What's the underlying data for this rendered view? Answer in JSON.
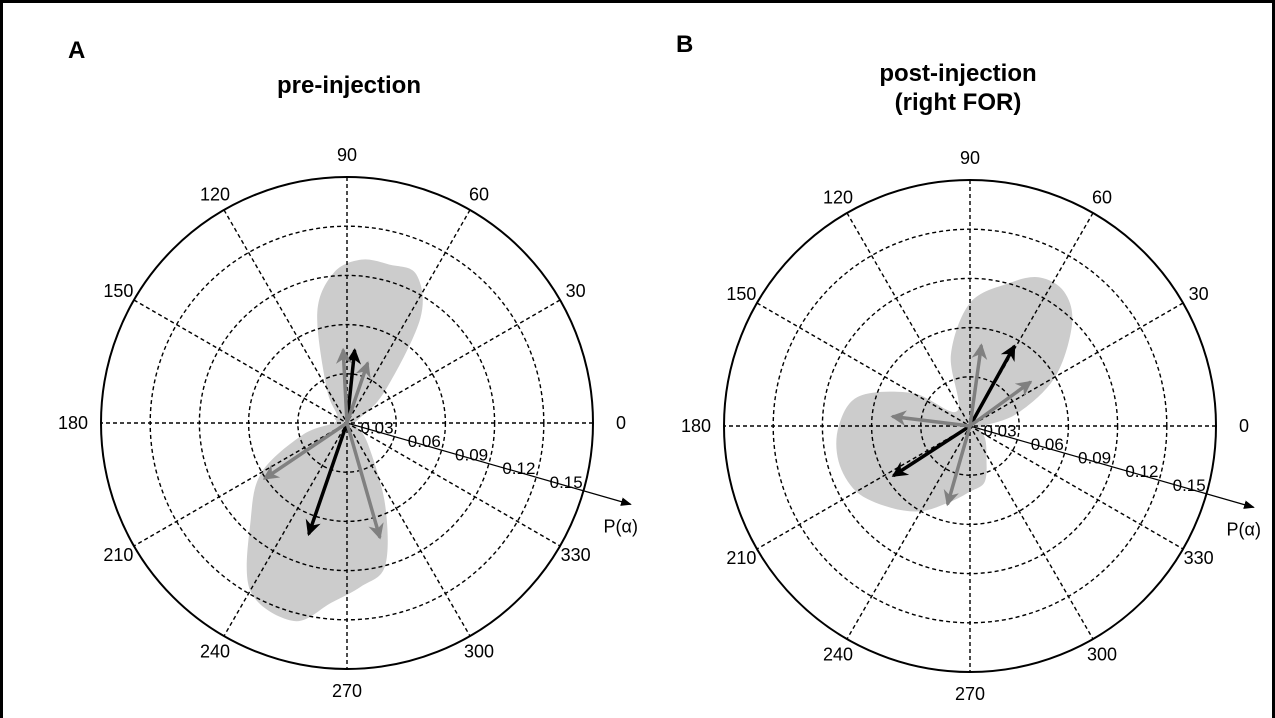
{
  "chart_data": [
    {
      "type": "polar",
      "panel_label": "A",
      "title": "pre-injection",
      "title_lines": [
        "pre-injection"
      ],
      "angle_ticks": [
        "0",
        "30",
        "60",
        "90",
        "120",
        "150",
        "180",
        "210",
        "240",
        "270",
        "300",
        "330"
      ],
      "angle_tick_values": [
        0,
        30,
        60,
        90,
        120,
        150,
        180,
        210,
        240,
        270,
        300,
        330
      ],
      "radial_ticks": [
        "0.03",
        "0.06",
        "0.09",
        "0.12",
        "0.15"
      ],
      "radial_tick_values": [
        0.03,
        0.06,
        0.09,
        0.12,
        0.15
      ],
      "rlim": [
        0,
        0.15
      ],
      "radial_axis_label": "P(α)",
      "radial_axis_angle_deg": -16,
      "grid": true,
      "distribution_colour": "#cccccc",
      "distribution": [
        {
          "angle": 0,
          "r": 0.004
        },
        {
          "angle": 20,
          "r": 0.008
        },
        {
          "angle": 40,
          "r": 0.03
        },
        {
          "angle": 55,
          "r": 0.078
        },
        {
          "angle": 65,
          "r": 0.1
        },
        {
          "angle": 75,
          "r": 0.1
        },
        {
          "angle": 85,
          "r": 0.1
        },
        {
          "angle": 95,
          "r": 0.092
        },
        {
          "angle": 105,
          "r": 0.07
        },
        {
          "angle": 120,
          "r": 0.025
        },
        {
          "angle": 140,
          "r": 0.008
        },
        {
          "angle": 160,
          "r": 0.008
        },
        {
          "angle": 180,
          "r": 0.008
        },
        {
          "angle": 195,
          "r": 0.028
        },
        {
          "angle": 210,
          "r": 0.06
        },
        {
          "angle": 225,
          "r": 0.083
        },
        {
          "angle": 240,
          "r": 0.118
        },
        {
          "angle": 255,
          "r": 0.125
        },
        {
          "angle": 265,
          "r": 0.11
        },
        {
          "angle": 275,
          "r": 0.1
        },
        {
          "angle": 285,
          "r": 0.09
        },
        {
          "angle": 295,
          "r": 0.055
        },
        {
          "angle": 315,
          "r": 0.018
        },
        {
          "angle": 340,
          "r": 0.006
        }
      ],
      "vectors": [
        {
          "angle": 84,
          "r": 0.044,
          "colour": "#000000"
        },
        {
          "angle": 251,
          "r": 0.071,
          "colour": "#000000"
        },
        {
          "angle": 93,
          "r": 0.044,
          "colour": "#808080"
        },
        {
          "angle": 71,
          "r": 0.038,
          "colour": "#808080"
        },
        {
          "angle": 214,
          "r": 0.06,
          "colour": "#808080"
        },
        {
          "angle": 286,
          "r": 0.072,
          "colour": "#808080"
        }
      ]
    },
    {
      "type": "polar",
      "panel_label": "B",
      "title": "post-injection (right FOR)",
      "title_lines": [
        "post-injection",
        "(right FOR)"
      ],
      "angle_ticks": [
        "0",
        "30",
        "60",
        "90",
        "120",
        "150",
        "180",
        "210",
        "240",
        "270",
        "300",
        "330"
      ],
      "angle_tick_values": [
        0,
        30,
        60,
        90,
        120,
        150,
        180,
        210,
        240,
        270,
        300,
        330
      ],
      "radial_ticks": [
        "0.03",
        "0.06",
        "0.09",
        "0.12",
        "0.15"
      ],
      "radial_tick_values": [
        0.03,
        0.06,
        0.09,
        0.12,
        0.15
      ],
      "rlim": [
        0,
        0.15
      ],
      "radial_axis_label": "P(α)",
      "radial_axis_angle_deg": -16,
      "grid": true,
      "distribution_colour": "#cccccc",
      "distribution": [
        {
          "angle": 0,
          "r": 0.008
        },
        {
          "angle": 15,
          "r": 0.03
        },
        {
          "angle": 30,
          "r": 0.06
        },
        {
          "angle": 45,
          "r": 0.088
        },
        {
          "angle": 55,
          "r": 0.1
        },
        {
          "angle": 65,
          "r": 0.1
        },
        {
          "angle": 75,
          "r": 0.09
        },
        {
          "angle": 90,
          "r": 0.075
        },
        {
          "angle": 105,
          "r": 0.045
        },
        {
          "angle": 130,
          "r": 0.012
        },
        {
          "angle": 150,
          "r": 0.04
        },
        {
          "angle": 165,
          "r": 0.07
        },
        {
          "angle": 180,
          "r": 0.08
        },
        {
          "angle": 195,
          "r": 0.083
        },
        {
          "angle": 210,
          "r": 0.08
        },
        {
          "angle": 225,
          "r": 0.07
        },
        {
          "angle": 240,
          "r": 0.06
        },
        {
          "angle": 255,
          "r": 0.048
        },
        {
          "angle": 270,
          "r": 0.04
        },
        {
          "angle": 285,
          "r": 0.035
        },
        {
          "angle": 300,
          "r": 0.02
        },
        {
          "angle": 320,
          "r": 0.012
        },
        {
          "angle": 345,
          "r": 0.006
        }
      ],
      "vectors": [
        {
          "angle": 61,
          "r": 0.055,
          "colour": "#000000"
        },
        {
          "angle": 213,
          "r": 0.055,
          "colour": "#000000"
        },
        {
          "angle": 82,
          "r": 0.049,
          "colour": "#808080"
        },
        {
          "angle": 36,
          "r": 0.045,
          "colour": "#808080"
        },
        {
          "angle": 173,
          "r": 0.047,
          "colour": "#808080"
        },
        {
          "angle": 254,
          "r": 0.049,
          "colour": "#808080"
        }
      ]
    }
  ]
}
